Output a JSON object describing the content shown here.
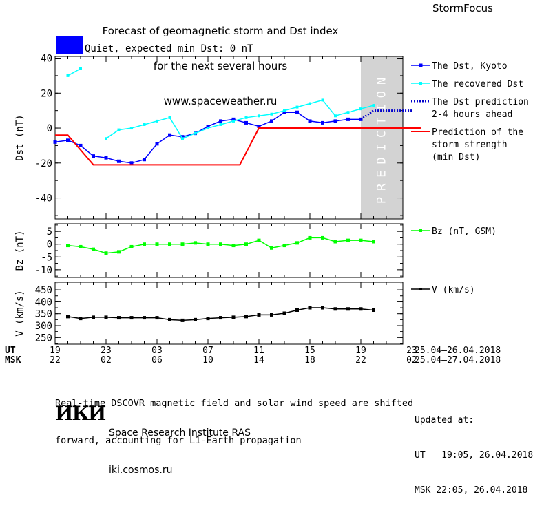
{
  "header": {
    "title_line1": "Forecast of geomagnetic storm and Dst index",
    "title_line2": "for the next several hours",
    "website": "www.spaceweather.ru",
    "brand": "StormFocus"
  },
  "status": {
    "text": "Quiet, expected min Dst: 0 nT",
    "color": "#0000ff"
  },
  "chart_data": [
    {
      "type": "line",
      "ylabel": "Dst (nT)",
      "ylim": [
        -52,
        41
      ],
      "yticks": [
        40,
        20,
        0,
        -20,
        -40
      ],
      "xlim": [
        0,
        28.7
      ],
      "grid": false,
      "prediction_label": "PREDICTION",
      "prediction_span": [
        24,
        28.7
      ],
      "series": [
        {
          "name": "The Dst, Kyoto",
          "color": "#0000ff",
          "style": "solid-square",
          "x": [
            0,
            1,
            2,
            3,
            4,
            5,
            6,
            7,
            8,
            9,
            10,
            11,
            12,
            13,
            14,
            15,
            16,
            17,
            18,
            19,
            20,
            21,
            22,
            23,
            24
          ],
          "values": [
            -8,
            -7,
            -10,
            -16,
            -17,
            -19,
            -20,
            -18,
            -9,
            -4,
            -5,
            -3,
            1,
            4,
            5,
            3,
            1,
            4,
            9,
            9,
            4,
            3,
            4,
            5,
            5
          ]
        },
        {
          "name": "The recovered Dst",
          "color": "#00ffff",
          "style": "solid-square-small",
          "segments": [
            {
              "x": [
                1,
                2
              ],
              "values": [
                30,
                34
              ]
            },
            {
              "x": [
                4,
                5,
                6,
                7,
                8,
                9,
                10,
                11,
                12,
                13,
                14,
                15,
                16,
                17,
                18,
                19,
                20,
                21,
                22,
                23,
                24,
                25
              ],
              "values": [
                -6,
                -1,
                0,
                2,
                4,
                6,
                -6,
                -3,
                0,
                2,
                4,
                6,
                7,
                8,
                10,
                12,
                14,
                16,
                7,
                9,
                11,
                13
              ]
            }
          ]
        },
        {
          "name": "The Dst prediction 2-4 hours ahead",
          "label_lines": [
            "The Dst prediction",
            "2-4 hours ahead"
          ],
          "color": "#0000cc",
          "style": "dotted",
          "x": [
            24,
            25,
            28
          ],
          "values": [
            5,
            10,
            10
          ]
        },
        {
          "name": "Prediction of the storm strength (min Dst)",
          "label_lines": [
            "Prediction of the",
            "storm strength",
            "(min Dst)"
          ],
          "color": "#ff0000",
          "style": "solid",
          "x": [
            0,
            1,
            3,
            14.5,
            16,
            28.7
          ],
          "values": [
            -4,
            -4,
            -21,
            -21,
            0,
            0
          ]
        }
      ]
    },
    {
      "type": "line",
      "ylabel": "Bz (nT)",
      "ylim": [
        -13,
        8
      ],
      "yticks": [
        5,
        0,
        -5,
        -10
      ],
      "series": [
        {
          "name": "Bz (nT, GSM)",
          "color": "#00ff00",
          "x": [
            1,
            2,
            3,
            4,
            5,
            6,
            7,
            8,
            9,
            10,
            11,
            12,
            13,
            14,
            15,
            16,
            17,
            18,
            19,
            20,
            21,
            22,
            23,
            24,
            25
          ],
          "values": [
            -0.5,
            -1.0,
            -2.0,
            -3.5,
            -3.0,
            -1.0,
            0.0,
            0.0,
            0.0,
            0.0,
            0.5,
            0.0,
            0.0,
            -0.5,
            0.0,
            1.5,
            -1.5,
            -0.5,
            0.5,
            2.5,
            2.5,
            1.0,
            1.5,
            1.5,
            1.0
          ]
        }
      ]
    },
    {
      "type": "line",
      "ylabel": "V (km/s)",
      "ylim": [
        222,
        482
      ],
      "yticks": [
        450,
        400,
        350,
        300,
        250
      ],
      "series": [
        {
          "name": "V (km/s)",
          "color": "#000000",
          "x": [
            1,
            2,
            3,
            4,
            5,
            6,
            7,
            8,
            9,
            10,
            11,
            12,
            13,
            14,
            15,
            16,
            17,
            18,
            19,
            20,
            21,
            22,
            23,
            24,
            25
          ],
          "values": [
            338,
            330,
            335,
            335,
            333,
            333,
            333,
            333,
            325,
            322,
            325,
            330,
            333,
            335,
            338,
            345,
            345,
            352,
            365,
            375,
            375,
            370,
            370,
            370,
            365
          ]
        }
      ]
    }
  ],
  "time_axis": {
    "ut_label": "UT",
    "msk_label": "MSK",
    "ut_ticks": [
      "19",
      "23",
      "03",
      "07",
      "11",
      "15",
      "19",
      "23"
    ],
    "msk_ticks": [
      "22",
      "02",
      "06",
      "10",
      "14",
      "18",
      "22",
      "02"
    ],
    "ut_range": "25.04–26.04.2018",
    "msk_range": "25.04–27.04.2018"
  },
  "footer": {
    "note_line1": "Real-time DSCOVR magnetic field and solar wind speed are shifted",
    "note_line2": "forward, accounting for L1-Earth propagation",
    "logo_text": "ИКИ",
    "institute": "Space Research Institute RAS",
    "site": "iki.cosmos.ru",
    "updated_label": "Updated at:",
    "updated_ut": "UT   19:05, 26.04.2018",
    "updated_msk": "MSK 22:05, 26.04.2018"
  }
}
